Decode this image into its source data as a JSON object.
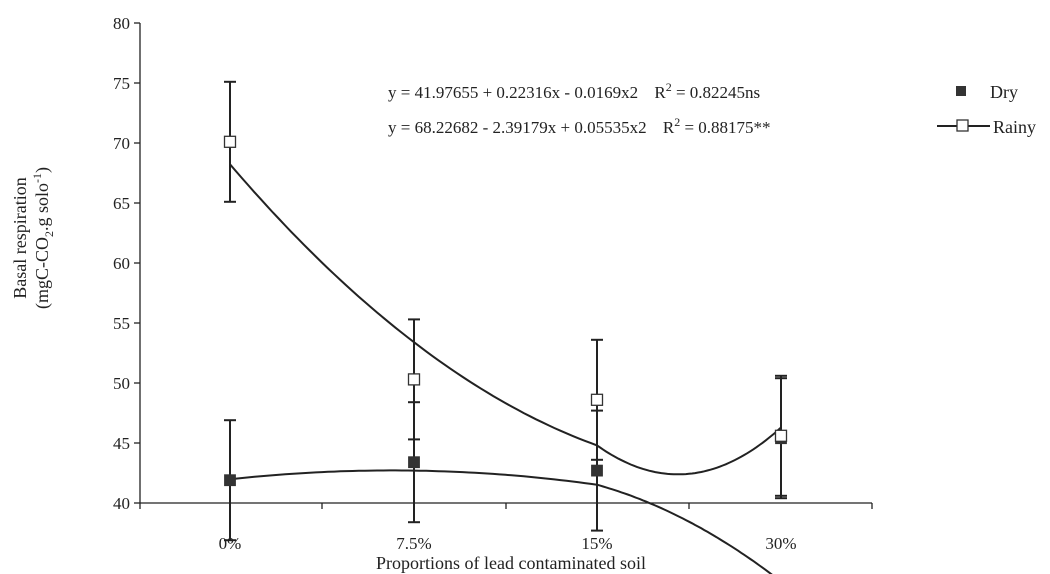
{
  "chart_data": {
    "type": "line",
    "xlabel": "Proportions of  lead contaminated soil",
    "ylabel_line1": "Basal respiration",
    "ylabel_line2_pre": "(mgC-CO",
    "ylabel_line2_sub": "2",
    "ylabel_line2_mid": ".g solo",
    "ylabel_line2_sup": "-1",
    "ylabel_line2_post": ")",
    "categories": [
      "0%",
      "7.5%",
      "15%",
      "30%"
    ],
    "x_numeric": [
      0,
      7.5,
      15,
      30
    ],
    "ylim": [
      40,
      80
    ],
    "yticks": [
      40,
      45,
      50,
      55,
      60,
      65,
      70,
      75,
      80
    ],
    "series": [
      {
        "name": "Dry",
        "marker": "filled-square",
        "color": "#333333",
        "values": [
          41.9,
          43.4,
          42.7,
          45.4
        ],
        "error_up": [
          5.0,
          5.0,
          5.0,
          5.0
        ],
        "error_down": [
          5.0,
          5.0,
          5.0,
          5.0
        ],
        "equation": "y = 41.97655 + 0.22316x - 0.0169x2",
        "r2_label": "R",
        "r2_sup": "2",
        "r2_value": " = 0.82245ns",
        "fit": {
          "a": 41.97655,
          "b": 0.22316,
          "c": -0.0169
        }
      },
      {
        "name": "Rainy",
        "marker": "open-square",
        "color": "#ffffff",
        "values": [
          70.1,
          50.3,
          48.6,
          45.6
        ],
        "error_up": [
          5.0,
          5.0,
          5.0,
          5.0
        ],
        "error_down": [
          5.0,
          5.0,
          5.0,
          5.0
        ],
        "equation": "y = 68.22682 - 2.39179x + 0.05535x2",
        "r2_label": "R",
        "r2_sup": "2",
        "r2_value": " = 0.88175**",
        "fit": {
          "a": 68.22682,
          "b": -2.39179,
          "c": 0.05535
        }
      }
    ],
    "legend_position": "top-right",
    "grid": false
  }
}
